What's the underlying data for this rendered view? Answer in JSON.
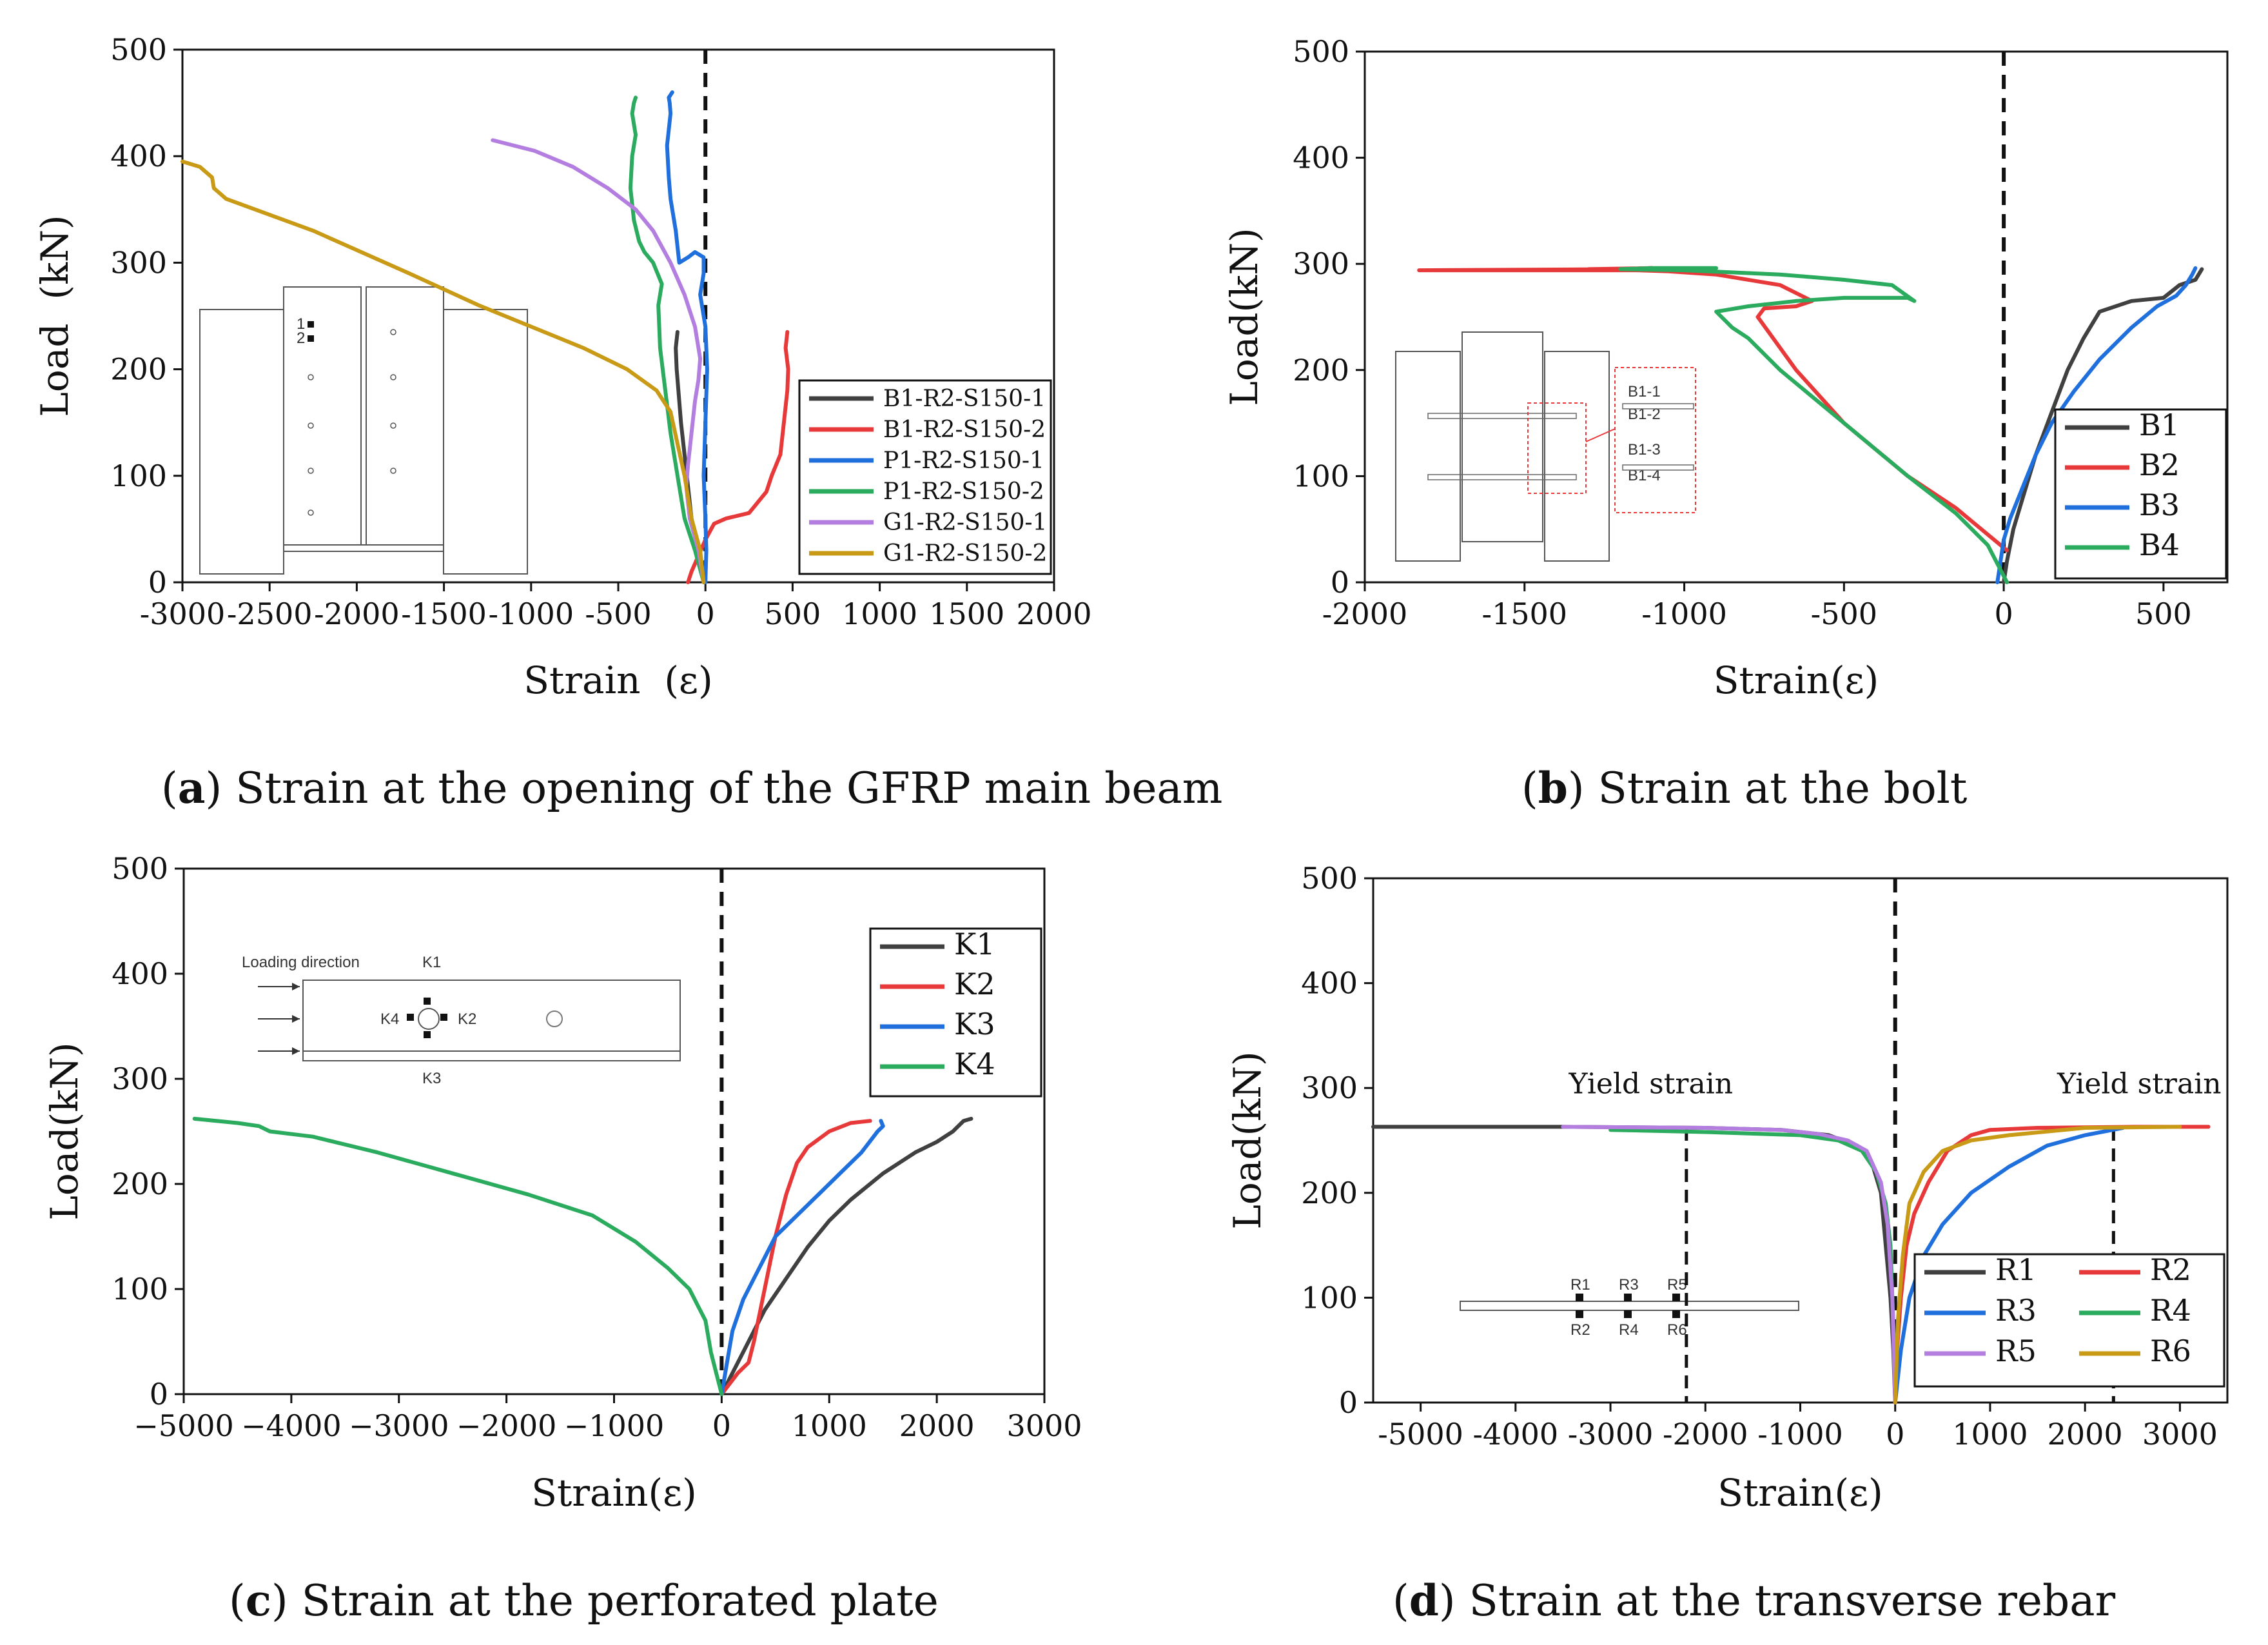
{
  "colors": {
    "black": "#404040",
    "red": "#e8393a",
    "blue": "#1f6fdc",
    "green": "#2bab5e",
    "purple": "#b37ee0",
    "gold": "#c99a16"
  },
  "chart_data": [
    {
      "id": "a",
      "type": "line",
      "xlabel": "Strain  (ε)",
      "ylabel": "Load  (kN)",
      "xlim": [
        -3000,
        2000
      ],
      "ylim": [
        0,
        500
      ],
      "xticks": [
        -3000,
        -2500,
        -2000,
        -1500,
        -1000,
        -500,
        0,
        500,
        1000,
        1500,
        2000
      ],
      "xticklabels": [
        "-3000",
        "-2500",
        "-2000",
        "-1500",
        "-1000",
        "-500",
        "0",
        "500",
        "1000",
        "1500",
        "2000"
      ],
      "yticks": [
        0,
        100,
        200,
        300,
        400,
        500
      ],
      "legend": "right",
      "caption": {
        "letter": "a",
        "text": " Strain at the opening of the GFRP main beam"
      },
      "inset_labels": [
        "1",
        "2"
      ],
      "series": [
        {
          "name": "B1-R2-S150-1",
          "color": "#404040",
          "x": [
            -10,
            -40,
            -80,
            -100,
            -120,
            -140,
            -155,
            -165,
            -170,
            -160
          ],
          "y": [
            0,
            30,
            60,
            90,
            120,
            150,
            180,
            200,
            220,
            235
          ]
        },
        {
          "name": "B1-R2-S150-2",
          "color": "#e8393a",
          "x": [
            -100,
            -80,
            -40,
            0,
            50,
            120,
            250,
            300,
            350,
            380,
            430,
            450,
            470,
            475,
            460,
            470
          ],
          "y": [
            0,
            10,
            25,
            40,
            55,
            60,
            65,
            75,
            85,
            100,
            120,
            150,
            180,
            200,
            220,
            235
          ]
        },
        {
          "name": "P1-R2-S150-1",
          "color": "#1f6fdc",
          "x": [
            0,
            5,
            0,
            -10,
            0,
            10,
            0,
            -30,
            -10,
            -10,
            -60,
            -100,
            -150,
            -170,
            -200,
            -210,
            -220,
            -200,
            -205,
            -210,
            -190
          ],
          "y": [
            0,
            30,
            60,
            100,
            150,
            200,
            240,
            270,
            290,
            305,
            310,
            305,
            300,
            330,
            360,
            380,
            410,
            440,
            450,
            455,
            460
          ]
        },
        {
          "name": "P1-R2-S150-2",
          "color": "#2bab5e",
          "x": [
            -10,
            -60,
            -120,
            -160,
            -200,
            -230,
            -260,
            -270,
            -250,
            -300,
            -350,
            -380,
            -410,
            -430,
            -420,
            -400,
            -420,
            -410,
            -400
          ],
          "y": [
            0,
            30,
            60,
            100,
            140,
            180,
            220,
            260,
            280,
            300,
            310,
            320,
            340,
            370,
            400,
            420,
            440,
            450,
            455
          ]
        },
        {
          "name": "G1-R2-S150-1",
          "color": "#b37ee0",
          "x": [
            -10,
            -40,
            -90,
            -110,
            -100,
            -80,
            -60,
            -40,
            -30,
            -60,
            -120,
            -200,
            -300,
            -400,
            -560,
            -760,
            -980,
            -1220
          ],
          "y": [
            0,
            30,
            60,
            90,
            110,
            140,
            170,
            190,
            210,
            240,
            270,
            300,
            330,
            350,
            370,
            390,
            405,
            415
          ]
        },
        {
          "name": "G1-R2-S150-2",
          "color": "#c99a16",
          "x": [
            -10,
            -30,
            -80,
            -120,
            -160,
            -200,
            -280,
            -450,
            -700,
            -1000,
            -1300,
            -1700,
            -2250,
            -2500,
            -2750,
            -2820,
            -2830,
            -2900,
            -3000
          ],
          "y": [
            0,
            30,
            60,
            100,
            130,
            160,
            180,
            200,
            220,
            240,
            260,
            290,
            330,
            345,
            360,
            370,
            380,
            390,
            395
          ]
        }
      ]
    },
    {
      "id": "b",
      "type": "line",
      "xlabel": "Strain(ε)",
      "ylabel": "Load(kN)",
      "xlim": [
        -2000,
        700
      ],
      "ylim": [
        0,
        500
      ],
      "xticks": [
        -2000,
        -1500,
        -1000,
        -500,
        0,
        500
      ],
      "xticklabels": [
        "-2000",
        "-1500",
        "-1000",
        "-500",
        "0",
        "500"
      ],
      "yticks": [
        0,
        100,
        200,
        300,
        400,
        500
      ],
      "legend": "right",
      "caption": {
        "letter": "b",
        "text": " Strain at the bolt"
      },
      "inset_labels": [
        "B1-1",
        "B1-2",
        "B1-3",
        "B1-4"
      ],
      "series": [
        {
          "name": "B1",
          "color": "#404040",
          "x": [
            0,
            10,
            30,
            60,
            100,
            150,
            200,
            250,
            300,
            400,
            500,
            550,
            600,
            610,
            620,
            610
          ],
          "y": [
            0,
            20,
            50,
            80,
            120,
            160,
            200,
            230,
            255,
            265,
            268,
            280,
            285,
            290,
            295,
            290
          ]
        },
        {
          "name": "B2",
          "color": "#e8393a",
          "x": [
            10,
            -50,
            -150,
            -300,
            -500,
            -650,
            -770,
            -750,
            -650,
            -600,
            -700,
            -900,
            -1050,
            -1150,
            -1830,
            -1200,
            -1100,
            -1300
          ],
          "y": [
            30,
            45,
            70,
            100,
            150,
            200,
            250,
            258,
            260,
            265,
            280,
            290,
            293,
            294,
            294,
            295,
            296,
            295
          ]
        },
        {
          "name": "B3",
          "color": "#1f6fdc",
          "x": [
            -20,
            -10,
            0,
            20,
            60,
            100,
            150,
            220,
            300,
            400,
            480,
            540,
            570,
            590,
            600,
            590
          ],
          "y": [
            0,
            20,
            40,
            60,
            90,
            120,
            150,
            180,
            210,
            240,
            260,
            270,
            280,
            290,
            296,
            290
          ]
        },
        {
          "name": "B4",
          "color": "#2bab5e",
          "x": [
            10,
            -50,
            -150,
            -300,
            -500,
            -700,
            -800,
            -850,
            -900,
            -800,
            -650,
            -500,
            -300,
            -280,
            -350,
            -500,
            -700,
            -1000,
            -1200,
            -1100,
            -900
          ],
          "y": [
            0,
            35,
            65,
            100,
            150,
            200,
            230,
            240,
            255,
            260,
            265,
            268,
            268,
            265,
            280,
            285,
            290,
            294,
            295,
            296,
            296
          ]
        }
      ]
    },
    {
      "id": "c",
      "type": "line",
      "xlabel": "Strain(ε)",
      "ylabel": "Load(kN)",
      "xlim": [
        -5000,
        3000
      ],
      "ylim": [
        0,
        500
      ],
      "xticks": [
        -5000,
        -4000,
        -3000,
        -2000,
        -1000,
        0,
        1000,
        2000,
        3000
      ],
      "xticklabels": [
        "−5000",
        "−4000",
        "−3000",
        "−2000",
        "−1000",
        "0",
        "1000",
        "2000",
        "3000"
      ],
      "yticks": [
        0,
        100,
        200,
        300,
        400,
        500
      ],
      "legend": "right",
      "caption": {
        "letter": "c",
        "text": " Strain at the perforated plate"
      },
      "inset_labels": [
        "Loading direction",
        "K1",
        "K2",
        "K3",
        "K4"
      ],
      "series": [
        {
          "name": "K1",
          "color": "#404040",
          "x": [
            0,
            100,
            250,
            400,
            600,
            800,
            1000,
            1200,
            1500,
            1800,
            2000,
            2150,
            2200,
            2250,
            2320
          ],
          "y": [
            0,
            20,
            50,
            80,
            110,
            140,
            165,
            185,
            210,
            230,
            240,
            250,
            255,
            260,
            262
          ]
        },
        {
          "name": "K2",
          "color": "#e8393a",
          "x": [
            0,
            150,
            250,
            300,
            400,
            500,
            600,
            700,
            800,
            1000,
            1200,
            1380
          ],
          "y": [
            0,
            20,
            30,
            50,
            100,
            150,
            190,
            220,
            235,
            250,
            258,
            260
          ]
        },
        {
          "name": "K3",
          "color": "#1f6fdc",
          "x": [
            0,
            50,
            100,
            200,
            300,
            400,
            500,
            700,
            900,
            1100,
            1300,
            1450,
            1500,
            1480
          ],
          "y": [
            0,
            30,
            60,
            90,
            110,
            130,
            150,
            170,
            190,
            210,
            230,
            250,
            255,
            260
          ]
        },
        {
          "name": "K4",
          "color": "#2bab5e",
          "x": [
            0,
            -50,
            -100,
            -150,
            -300,
            -500,
            -800,
            -1200,
            -1800,
            -2500,
            -3200,
            -3800,
            -4200,
            -4300,
            -4500,
            -4900
          ],
          "y": [
            0,
            20,
            40,
            70,
            100,
            120,
            145,
            170,
            190,
            210,
            230,
            245,
            250,
            255,
            258,
            262
          ]
        }
      ]
    },
    {
      "id": "d",
      "type": "line",
      "xlabel": "Strain(ε)",
      "ylabel": "Load(kN)",
      "xlim": [
        -5500,
        3500
      ],
      "ylim": [
        0,
        500
      ],
      "xticks": [
        -5000,
        -4000,
        -3000,
        -2000,
        -1000,
        0,
        1000,
        2000,
        3000
      ],
      "xticklabels": [
        "-5000",
        "-4000",
        "-3000",
        "-2000",
        "-1000",
        "0",
        "1000",
        "2000",
        "3000"
      ],
      "yticks": [
        0,
        100,
        200,
        300,
        400,
        500
      ],
      "legend": "bottom-right",
      "caption": {
        "letter": "d",
        "text": " Strain at the transverse rebar"
      },
      "annotations": [
        {
          "text": "Yield strain",
          "x": -2200
        },
        {
          "text": "Yield strain",
          "x": 2300
        }
      ],
      "inset_labels": [
        "R1",
        "R3",
        "R5",
        "R2",
        "R4",
        "R6"
      ],
      "series": [
        {
          "name": "R1",
          "color": "#404040",
          "x": [
            0,
            -20,
            -50,
            -100,
            -150,
            -250,
            -400,
            -700,
            -1200,
            -2000,
            -3500,
            -5500
          ],
          "y": [
            0,
            50,
            100,
            150,
            200,
            230,
            245,
            255,
            260,
            262,
            263,
            263
          ]
        },
        {
          "name": "R2",
          "color": "#e8393a",
          "x": [
            0,
            20,
            60,
            120,
            200,
            350,
            550,
            800,
            1000,
            1500,
            2500,
            3300
          ],
          "y": [
            0,
            50,
            100,
            150,
            180,
            210,
            240,
            255,
            260,
            262,
            263,
            263
          ]
        },
        {
          "name": "R3",
          "color": "#1f6fdc",
          "x": [
            0,
            60,
            150,
            300,
            500,
            800,
            1200,
            1600,
            2000,
            2400
          ],
          "y": [
            0,
            50,
            100,
            140,
            170,
            200,
            225,
            245,
            255,
            262
          ]
        },
        {
          "name": "R4",
          "color": "#2bab5e",
          "x": [
            -10,
            -50,
            -100,
            -200,
            -350,
            -600,
            -1000,
            -2000,
            -3000
          ],
          "y": [
            50,
            150,
            190,
            220,
            240,
            250,
            255,
            258,
            260
          ]
        },
        {
          "name": "R5",
          "color": "#b37ee0",
          "x": [
            0,
            -30,
            -80,
            -150,
            -300,
            -500,
            -800,
            -1200,
            -2000,
            -3500
          ],
          "y": [
            0,
            100,
            170,
            210,
            240,
            250,
            256,
            260,
            262,
            263
          ]
        },
        {
          "name": "R6",
          "color": "#c99a16",
          "x": [
            0,
            30,
            80,
            150,
            300,
            500,
            800,
            1200,
            2000,
            3000
          ],
          "y": [
            0,
            80,
            140,
            190,
            220,
            240,
            250,
            255,
            262,
            263
          ]
        }
      ]
    }
  ]
}
